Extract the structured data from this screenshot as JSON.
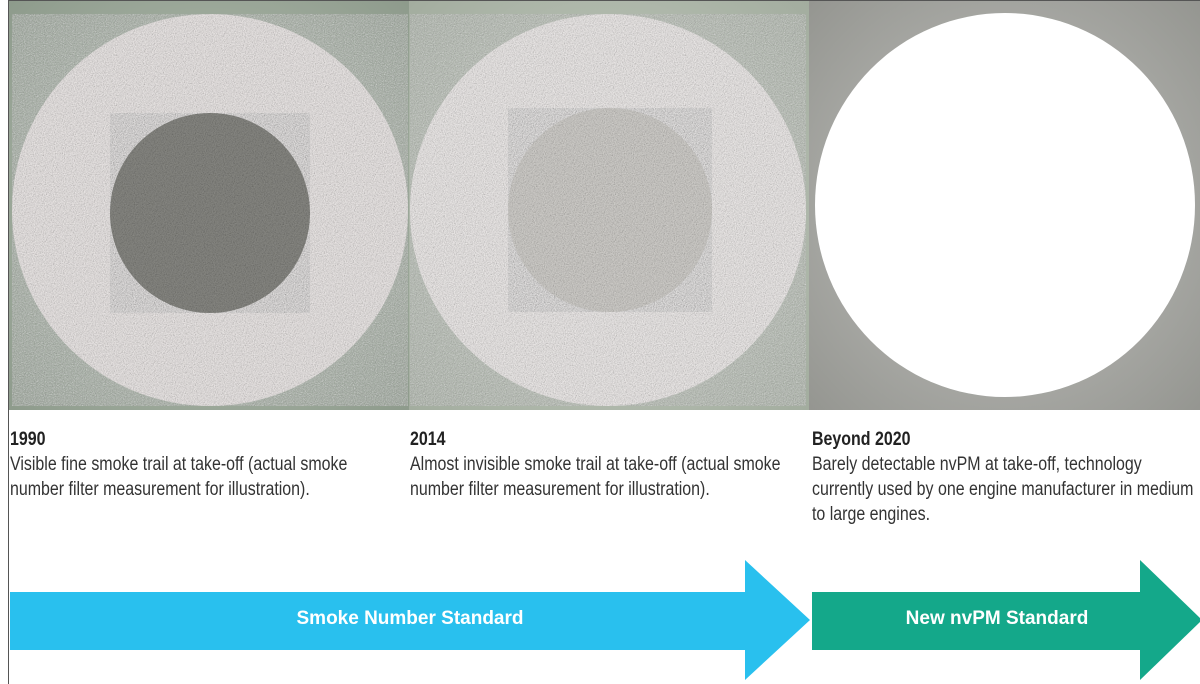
{
  "panels": [
    {
      "year": "1990",
      "description": "Visible fine smoke trail at take-off (actual smoke number filter measurement for illustration)."
    },
    {
      "year": "2014",
      "description": "Almost invisible smoke trail at take-off (actual smoke number filter measurement for illustration)."
    },
    {
      "year": "Beyond 2020",
      "description": "Barely detectable nvPM at take-off, technology currently used by one engine manufacturer in medium to large engines."
    }
  ],
  "arrows": [
    {
      "label": "Smoke Number Standard"
    },
    {
      "label": "New nvPM Standard"
    }
  ]
}
